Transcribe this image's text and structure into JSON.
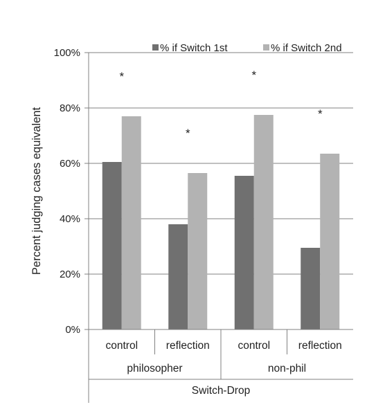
{
  "chart_data": {
    "type": "bar",
    "title": "",
    "ylabel": "Percent judging cases equivalent",
    "xlabel": "Switch-Drop",
    "ylim": [
      0,
      100
    ],
    "yticks": [
      "0%",
      "20%",
      "40%",
      "60%",
      "80%",
      "100%"
    ],
    "grid": true,
    "legend_position": "top",
    "categories": [
      "control",
      "reflection",
      "control",
      "reflection"
    ],
    "groups": [
      "philosopher",
      "non-phil"
    ],
    "series": [
      {
        "name": "% if Switch 1st",
        "color": "#707070",
        "values": [
          60.5,
          38,
          55.5,
          29.5
        ]
      },
      {
        "name": "% if Switch 2nd",
        "color": "#b3b3b3",
        "values": [
          77,
          56.5,
          77.5,
          63.5
        ]
      }
    ],
    "annotations": [
      "*",
      "*",
      "*",
      "*"
    ]
  }
}
